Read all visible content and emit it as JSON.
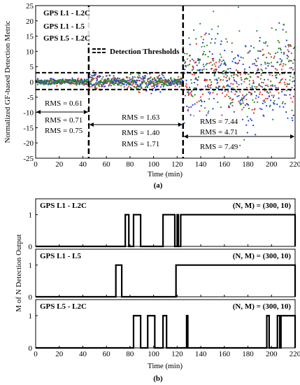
{
  "figure": {
    "caption_a": "(a)",
    "caption_b": "(b)"
  },
  "chart_data": [
    {
      "type": "scatter",
      "xlabel": "Time (min)",
      "ylabel": "Normalized GF-based Detection Metric",
      "xlim": [
        0,
        220
      ],
      "ylim": [
        -25,
        25
      ],
      "xticks": [
        0,
        20,
        40,
        60,
        80,
        100,
        120,
        140,
        160,
        180,
        200,
        220
      ],
      "yticks": [
        25,
        20,
        15,
        10,
        5,
        0,
        -5,
        -10,
        -15,
        -20,
        -25
      ],
      "grid": false,
      "legend_position": "top-left",
      "series": [
        {
          "name": "GPS L1 - L2C",
          "color": "#1f3fd6"
        },
        {
          "name": "GPS L1 - L5",
          "color": "#e03030"
        },
        {
          "name": "GPS L5 - L2C",
          "color": "#2a8a2a"
        }
      ],
      "thresholds": {
        "label": "Detection Thresholds",
        "values": [
          3,
          -2.5
        ],
        "style": "dashed"
      },
      "segment_boundaries": [
        45,
        125
      ],
      "rms_groups": [
        {
          "range": [
            0,
            45
          ],
          "values": [
            {
              "text": "RMS = 0.61",
              "color": "#1f3fd6"
            },
            {
              "text": "RMS = 0.71",
              "color": "#e03030"
            },
            {
              "text": "RMS = 0.75",
              "color": "#2a8a2a"
            }
          ]
        },
        {
          "range": [
            45,
            125
          ],
          "values": [
            {
              "text": "RMS = 1.63",
              "color": "#1f3fd6"
            },
            {
              "text": "RMS = 1.40",
              "color": "#e03030"
            },
            {
              "text": "RMS = 1.71",
              "color": "#2a8a2a"
            }
          ]
        },
        {
          "range": [
            125,
            220
          ],
          "values": [
            {
              "text": "RMS = 7.44",
              "color": "#1f3fd6"
            },
            {
              "text": "RMS = 4.71",
              "color": "#e03030"
            },
            {
              "text": "RMS = 7.49",
              "color": "#2a8a2a"
            }
          ]
        }
      ]
    },
    {
      "type": "line",
      "ylabel": "M of N Detection Output",
      "xlabel": "Time (min)",
      "xlim": [
        0,
        220
      ],
      "xticks": [
        0,
        20,
        40,
        60,
        80,
        100,
        120,
        140,
        160,
        180,
        200,
        220
      ],
      "yticks": [
        0,
        1
      ],
      "ylim": [
        0,
        1.5
      ],
      "subplots": [
        {
          "title": "GPS L1 - L2C",
          "params": "(N, M) = (300, 10)",
          "high_intervals": [
            [
              76,
              79
            ],
            [
              83,
              89
            ],
            [
              108,
              118
            ],
            [
              120,
              121
            ],
            [
              123,
              220
            ]
          ]
        },
        {
          "title": "GPS L1 - L5",
          "params": "(N, M) = (300, 10)",
          "high_intervals": [
            [
              68,
              73
            ],
            [
              119,
              220
            ]
          ]
        },
        {
          "title": "GPS L5 - L2C",
          "params": "(N, M) = (300, 10)",
          "high_intervals": [
            [
              83,
              89
            ],
            [
              95,
              101
            ],
            [
              108,
              111
            ],
            [
              128,
              129
            ],
            [
              196,
              198
            ],
            [
              205,
              207
            ],
            [
              208,
              220
            ]
          ]
        }
      ]
    }
  ]
}
